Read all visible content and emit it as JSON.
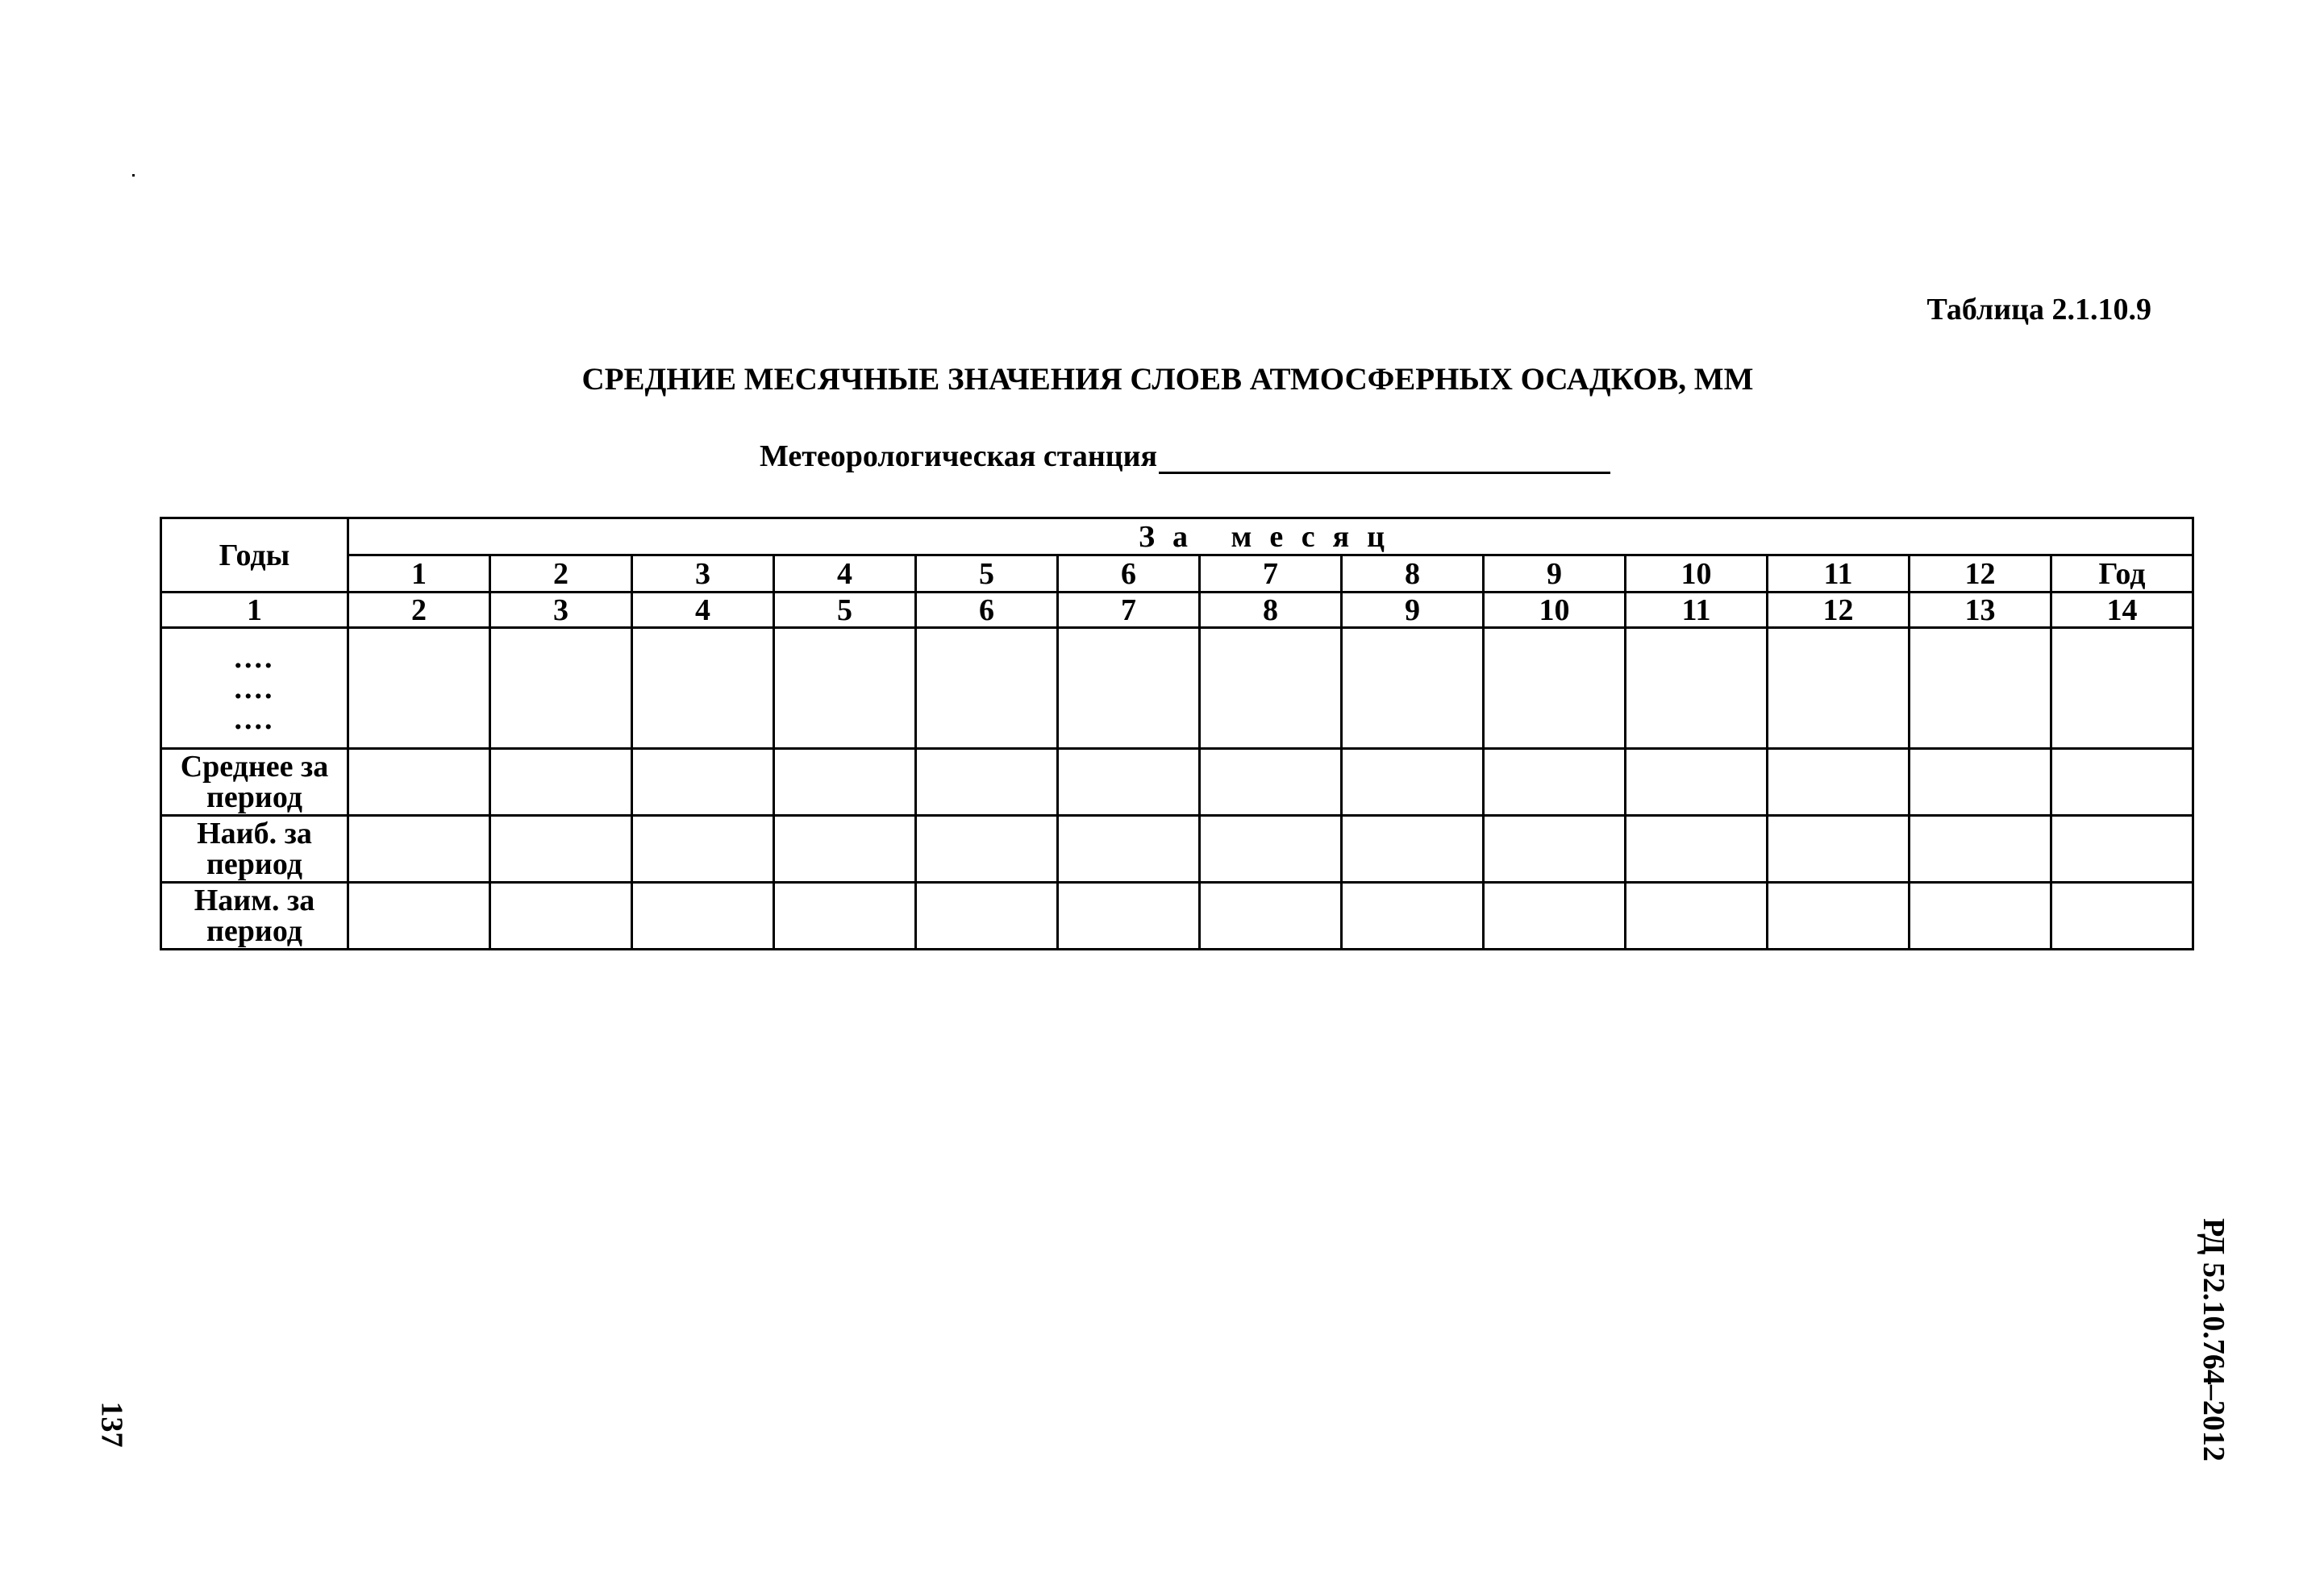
{
  "table_label": "Таблица 2.1.10.9",
  "title": "СРЕДНИЕ МЕСЯЧНЫЕ ЗНАЧЕНИЯ СЛОЕВ АТМОСФЕРНЫХ ОСАДКОВ, ММ",
  "station_label": "Метеорологическая станция",
  "table": {
    "years_header": "Годы",
    "month_group_header": "За месяц",
    "month_headers": [
      "1",
      "2",
      "3",
      "4",
      "5",
      "6",
      "7",
      "8",
      "9",
      "10",
      "11",
      "12",
      "Год"
    ],
    "column_numbers": [
      "1",
      "2",
      "3",
      "4",
      "5",
      "6",
      "7",
      "8",
      "9",
      "10",
      "11",
      "12",
      "13",
      "14"
    ],
    "placeholder_rows": [
      "....",
      "....",
      "...."
    ],
    "summary_rows": [
      {
        "line1": "Среднее за",
        "line2": "период"
      },
      {
        "line1": "Наиб. за",
        "line2": "период"
      },
      {
        "line1": "Наим. за",
        "line2": "период"
      }
    ]
  },
  "page_number": "137",
  "document_code": "РД 52.10.764–2012"
}
